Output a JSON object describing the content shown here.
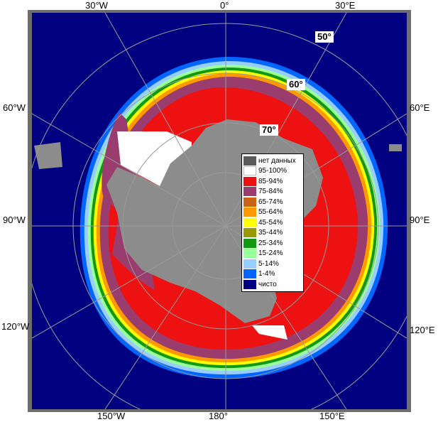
{
  "longitude_labels": {
    "top": [
      "30°W",
      "0°",
      "30°E"
    ],
    "left": [
      "60°W",
      "90°W",
      "120°W"
    ],
    "right": [
      "60°E",
      "90°E",
      "120°E"
    ],
    "bottom": [
      "150°W",
      "180°",
      "150°E"
    ]
  },
  "latitude_labels": [
    "50°",
    "60°",
    "70°"
  ],
  "legend": [
    {
      "label": "нет данных",
      "color": "#5a5a5a"
    },
    {
      "label": "95-100%",
      "color": "#ffffff"
    },
    {
      "label": "85-94%",
      "color": "#ee1111"
    },
    {
      "label": "75-84%",
      "color": "#9a3d6e"
    },
    {
      "label": "65-74%",
      "color": "#c86414"
    },
    {
      "label": "55-64%",
      "color": "#ff9900"
    },
    {
      "label": "45-54%",
      "color": "#ffff00"
    },
    {
      "label": "35-44%",
      "color": "#999900"
    },
    {
      "label": "25-34%",
      "color": "#129912"
    },
    {
      "label": "15-24%",
      "color": "#99ff99"
    },
    {
      "label": "5-14%",
      "color": "#99ccff"
    },
    {
      "label": "1-4%",
      "color": "#0066ff"
    },
    {
      "label": "чисто",
      "color": "#000080"
    }
  ],
  "colors": {
    "ocean": "#000080",
    "land": "#8c8c8c",
    "no_data": "#5a5a5a",
    "frame": "#6e6e6e"
  }
}
